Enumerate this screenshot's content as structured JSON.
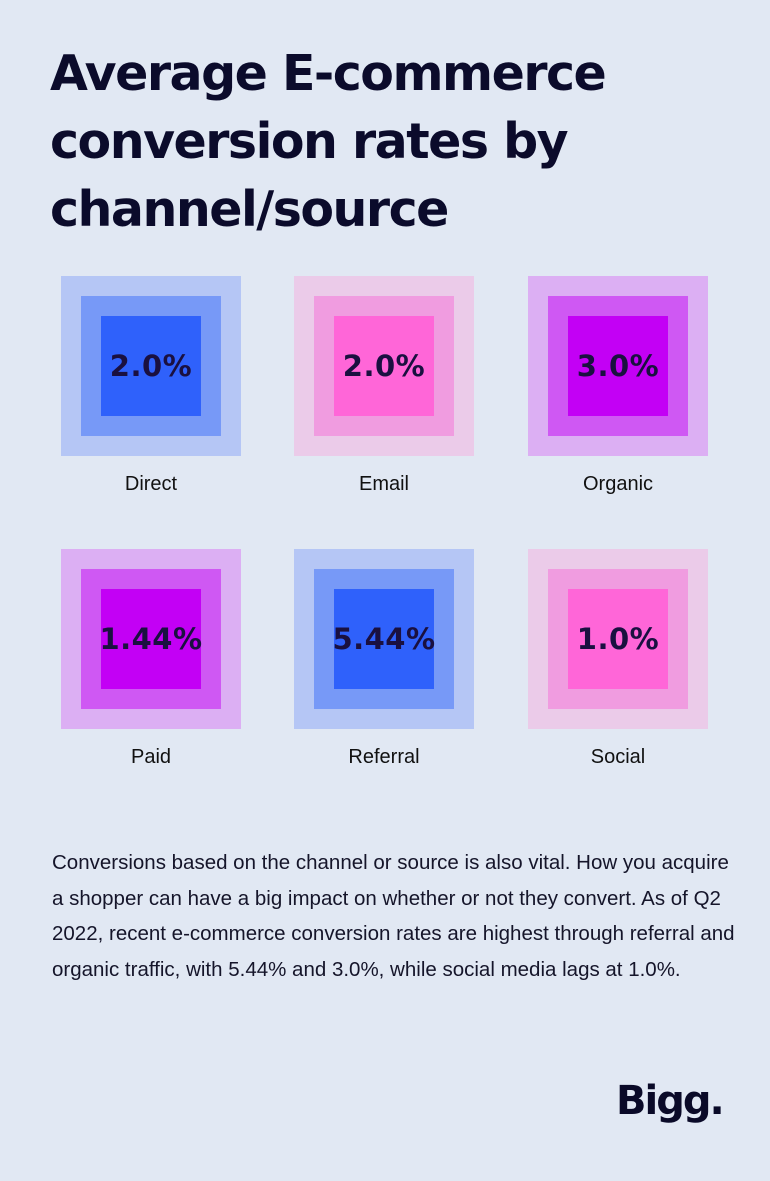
{
  "title": "Average E-commerce conversion rates by channel/source",
  "colors": {
    "background": "#e1e8f3",
    "blue": {
      "outer": "#b5c6f5",
      "middle": "#7799f7",
      "inner": "#2f61fb"
    },
    "pink": {
      "outer": "#ebcbe9",
      "middle": "#f09ce0",
      "inner": "#ff66d8"
    },
    "purple": {
      "outer": "#dcaff3",
      "middle": "#cf58f3",
      "inner": "#c300f5"
    }
  },
  "chart_data": {
    "type": "table",
    "title": "Average E-commerce conversion rates by channel/source",
    "categories": [
      "Direct",
      "Email",
      "Organic",
      "Paid",
      "Referral",
      "Social"
    ],
    "values": [
      2.0,
      2.0,
      3.0,
      1.44,
      5.44,
      1.0
    ],
    "unit": "%",
    "items": [
      {
        "channel": "Direct",
        "value": 2.0,
        "label": "2.0%",
        "color": "blue"
      },
      {
        "channel": "Email",
        "value": 2.0,
        "label": "2.0%",
        "color": "pink"
      },
      {
        "channel": "Organic",
        "value": 3.0,
        "label": "3.0%",
        "color": "purple"
      },
      {
        "channel": "Paid",
        "value": 1.44,
        "label": "1.44%",
        "color": "purple"
      },
      {
        "channel": "Referral",
        "value": 5.44,
        "label": "5.44%",
        "color": "blue"
      },
      {
        "channel": "Social",
        "value": 1.0,
        "label": "1.0%",
        "color": "pink"
      }
    ]
  },
  "body_text": "Conversions based on the channel or source is also vital. How you acquire a shopper can have a big impact on whether or not they convert. As of Q2 2022, recent e-commerce conversion rates are highest through referral and organic traffic, with 5.44% and 3.0%, while social media lags at 1.0%.",
  "brand": "Bigg."
}
